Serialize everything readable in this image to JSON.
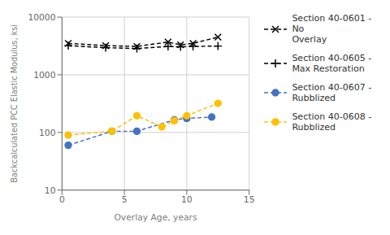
{
  "chart_data": {
    "type": "line",
    "title": "",
    "xlabel": "Overlay Age, years",
    "ylabel": "Backcalculated  PCC Elastic Modulus, ksi",
    "xlim": [
      0,
      15
    ],
    "xticks": [
      0,
      5,
      10,
      15
    ],
    "ylim": [
      10,
      10000
    ],
    "yticks": [
      10,
      100,
      1000,
      10000
    ],
    "log": "y",
    "grid": true,
    "legend": "right",
    "series": [
      {
        "name": "Section 40-0601 - No\nOverlay",
        "color": "black",
        "marker": "x",
        "line_style": "dashed",
        "x": [
          0.5,
          3.5,
          6.0,
          8.5,
          9.5,
          10.5,
          12.5
        ],
        "values": [
          3500,
          3200,
          3100,
          3700,
          3300,
          3500,
          4500
        ]
      },
      {
        "name": "Section 40-0605 -\nMax Restoration",
        "color": "black",
        "marker": "plus",
        "line_style": "dashed",
        "x": [
          0.5,
          3.5,
          6.0,
          8.5,
          9.5,
          10.5,
          12.5
        ],
        "values": [
          3200,
          2950,
          2850,
          3100,
          3050,
          3100,
          3150
        ]
      },
      {
        "name": "Section 40-0607 -\nRubblized",
        "color": "#4472C4",
        "marker": "circle",
        "line_style": "dashed",
        "x": [
          0.5,
          4.0,
          6.0,
          9.0,
          10.0,
          12.0
        ],
        "values": [
          60,
          105,
          105,
          165,
          175,
          185
        ]
      },
      {
        "name": "Section 40-0608 -\nRubblized",
        "color": "#FFC000",
        "marker": "circle",
        "line_style": "dashed",
        "x": [
          0.5,
          4.0,
          6.0,
          8.0,
          9.0,
          10.0,
          12.5
        ],
        "values": [
          90,
          105,
          195,
          125,
          160,
          195,
          320
        ]
      }
    ]
  }
}
